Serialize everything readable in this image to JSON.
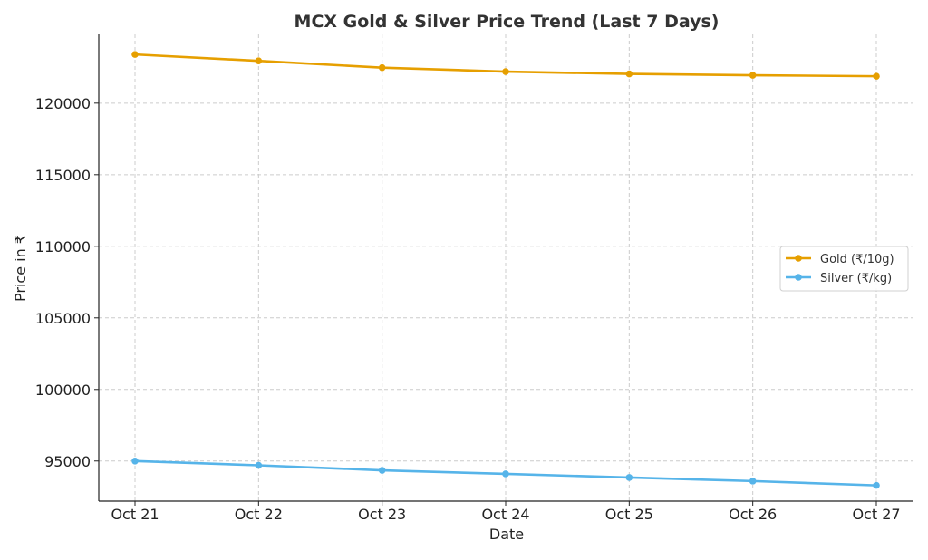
{
  "chart_data": {
    "type": "line",
    "title": "MCX Gold & Silver Price Trend (Last 7 Days)",
    "xlabel": "Date",
    "ylabel": "Price in ₹",
    "categories": [
      "Oct 21",
      "Oct 22",
      "Oct 23",
      "Oct 24",
      "Oct 25",
      "Oct 26",
      "Oct 27"
    ],
    "ylim": [
      92200,
      124800
    ],
    "yticks": [
      95000,
      100000,
      105000,
      110000,
      115000,
      120000
    ],
    "grid": true,
    "legend_position": "center-right",
    "series": [
      {
        "name": "Gold (₹/10g)",
        "color": "#E69F00",
        "values": [
          123400,
          122950,
          122480,
          122200,
          122040,
          121950,
          121880
        ]
      },
      {
        "name": "Silver (₹/kg)",
        "color": "#56B4E9",
        "values": [
          95000,
          94700,
          94350,
          94100,
          93850,
          93600,
          93300
        ]
      }
    ]
  }
}
